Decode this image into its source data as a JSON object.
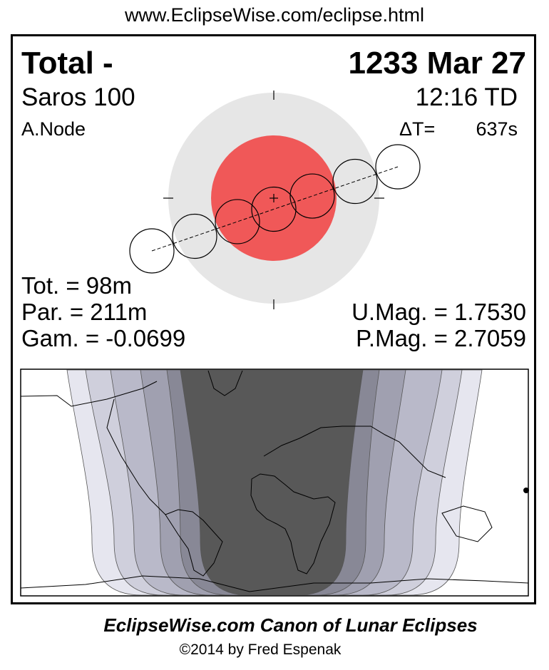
{
  "header_url": "www.EclipseWise.com/eclipse.html",
  "eclipse": {
    "type": "Total  -",
    "date": "1233 Mar 27",
    "saros": "Saros 100",
    "time": "12:16 TD",
    "node": "A.Node",
    "delta_t_label": "ΔT=",
    "delta_t_value": "637s",
    "totality": "Tot. =  98m",
    "partial": "Par. = 211m",
    "gamma": "Gam. = -0.0699",
    "umbral_mag": "U.Mag. = 1.7530",
    "penumbral_mag": "P.Mag. = 2.7059"
  },
  "colors": {
    "umbra": "#f05858",
    "penumbra": "#e6e6e6",
    "map_bands": [
      "#e6e6ef",
      "#cfcfdc",
      "#b9b9c9",
      "#a0a0b0",
      "#888896",
      "#585858"
    ]
  },
  "footer": {
    "title": "EclipseWise.com Canon of Lunar Eclipses",
    "copyright": "©2014 by Fred Espenak"
  }
}
